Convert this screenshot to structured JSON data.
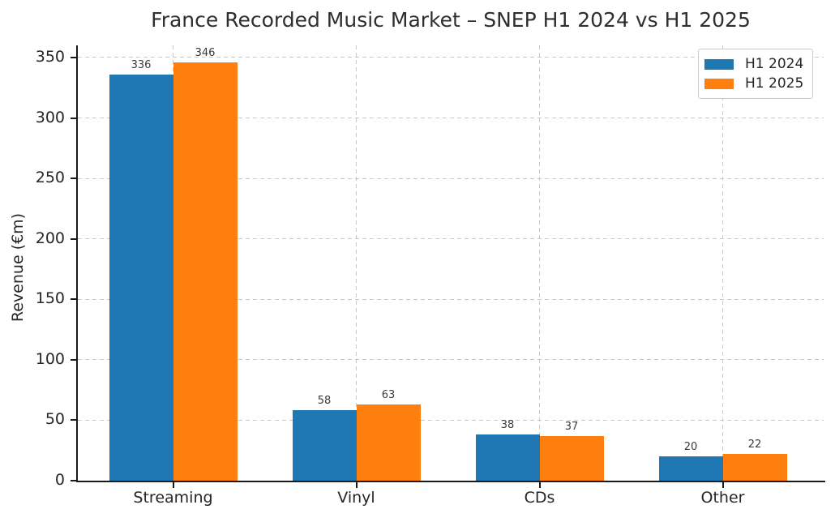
{
  "chart_data": {
    "type": "bar",
    "title": "France Recorded Music Market – SNEP H1 2024 vs H1 2025",
    "ylabel": "Revenue (€m)",
    "xlabel": "",
    "categories": [
      "Streaming",
      "Vinyl",
      "CDs",
      "Other"
    ],
    "series": [
      {
        "name": "H1 2024",
        "color": "#1f77b4",
        "values": [
          336,
          58,
          38,
          20
        ]
      },
      {
        "name": "H1 2025",
        "color": "#ff7f0e",
        "values": [
          346,
          63,
          37,
          22
        ]
      }
    ],
    "ylim": [
      0,
      360
    ],
    "yticks": [
      0,
      50,
      100,
      150,
      200,
      250,
      300,
      350
    ],
    "grid": true,
    "grid_style": "dashed",
    "grid_color": "#c9c9c9",
    "axis_color": "#1a1a1a",
    "text_color": "#262626",
    "value_label_color": "#3a3a3a",
    "legend_position": "upper right",
    "bar_value_labels": true
  }
}
